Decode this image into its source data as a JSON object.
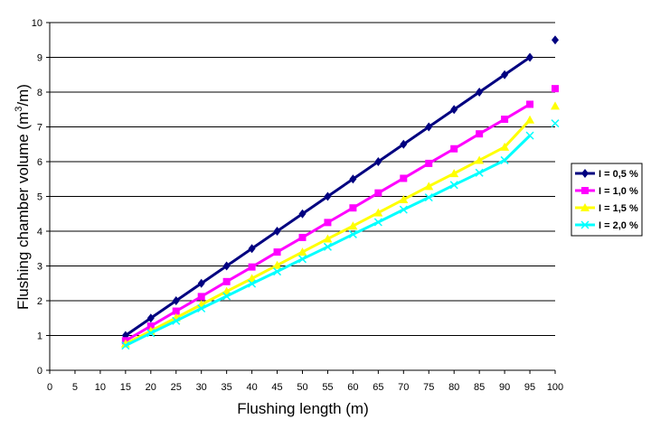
{
  "chart_data": {
    "type": "line",
    "title": "",
    "xlabel": "Flushing length (m)",
    "ylabel_main": "Flushing chamber volume (m",
    "ylabel_sup": "3",
    "ylabel_end": "/m)",
    "xlim": [
      0,
      100
    ],
    "ylim": [
      0,
      10
    ],
    "x_ticks": [
      "0",
      "5",
      "10",
      "15",
      "20",
      "25",
      "30",
      "35",
      "40",
      "45",
      "50",
      "55",
      "60",
      "65",
      "70",
      "75",
      "80",
      "85",
      "90",
      "95",
      "100"
    ],
    "y_ticks": [
      "0",
      "1",
      "2",
      "3",
      "4",
      "5",
      "6",
      "7",
      "8",
      "9",
      "10"
    ],
    "grid": "horizontal",
    "legend_position": "right",
    "x": [
      15,
      20,
      25,
      30,
      35,
      40,
      45,
      50,
      55,
      60,
      65,
      70,
      75,
      80,
      85,
      90,
      95
    ],
    "series": [
      {
        "name": "I = 0,5 %",
        "color": "#000080",
        "marker": "diamond",
        "values": [
          1.0,
          1.5,
          2.0,
          2.5,
          3.0,
          3.5,
          4.0,
          4.5,
          5.0,
          5.5,
          6.0,
          6.5,
          7.0,
          7.5,
          8.0,
          8.5,
          9.0
        ],
        "extra_point": [
          100,
          9.5
        ]
      },
      {
        "name": "I = 1,0 %",
        "color": "#ff00ff",
        "marker": "square",
        "values": [
          0.85,
          1.27,
          1.7,
          2.12,
          2.55,
          2.97,
          3.4,
          3.82,
          4.25,
          4.67,
          5.1,
          5.52,
          5.95,
          6.37,
          6.8,
          7.22,
          7.65
        ],
        "extra_point": [
          100,
          8.1
        ]
      },
      {
        "name": "I = 1,5 %",
        "color": "#ffff00",
        "marker": "triangle",
        "values": [
          0.76,
          1.13,
          1.51,
          1.89,
          2.27,
          2.64,
          3.02,
          3.4,
          3.78,
          4.15,
          4.53,
          4.91,
          5.29,
          5.66,
          6.04,
          6.42,
          7.2
        ],
        "extra_point": [
          100,
          7.6
        ]
      },
      {
        "name": "I = 2,0 %",
        "color": "#00ffff",
        "marker": "x",
        "values": [
          0.71,
          1.07,
          1.42,
          1.78,
          2.13,
          2.49,
          2.84,
          3.2,
          3.55,
          3.91,
          4.26,
          4.62,
          4.97,
          5.33,
          5.68,
          6.04,
          6.75
        ],
        "extra_point": [
          100,
          7.1
        ]
      }
    ]
  }
}
